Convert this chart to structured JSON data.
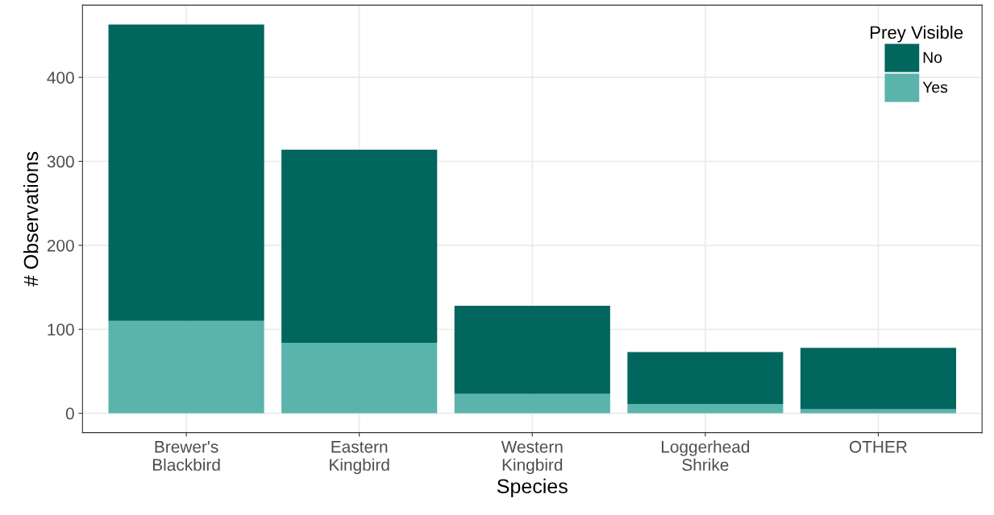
{
  "chart_data": {
    "type": "bar",
    "stacked": true,
    "xlabel": "Species",
    "ylabel": "# Observations",
    "legend_title": "Prey Visible",
    "legend": "top right",
    "grid": true,
    "categories": [
      "Brewer's\nBlackbird",
      "Eastern\nKingbird",
      "Western\nKingbird",
      "Loggerhead\nShrike",
      "OTHER"
    ],
    "series": [
      {
        "name": "Yes",
        "color": "#5ab4ac",
        "values": [
          110,
          84,
          23,
          11,
          5
        ]
      },
      {
        "name": "No",
        "color": "#01665e",
        "values": [
          353,
          230,
          105,
          62,
          73
        ]
      }
    ],
    "ylim": [
      -23,
      486
    ],
    "yticks": [
      0,
      100,
      200,
      300,
      400
    ]
  }
}
